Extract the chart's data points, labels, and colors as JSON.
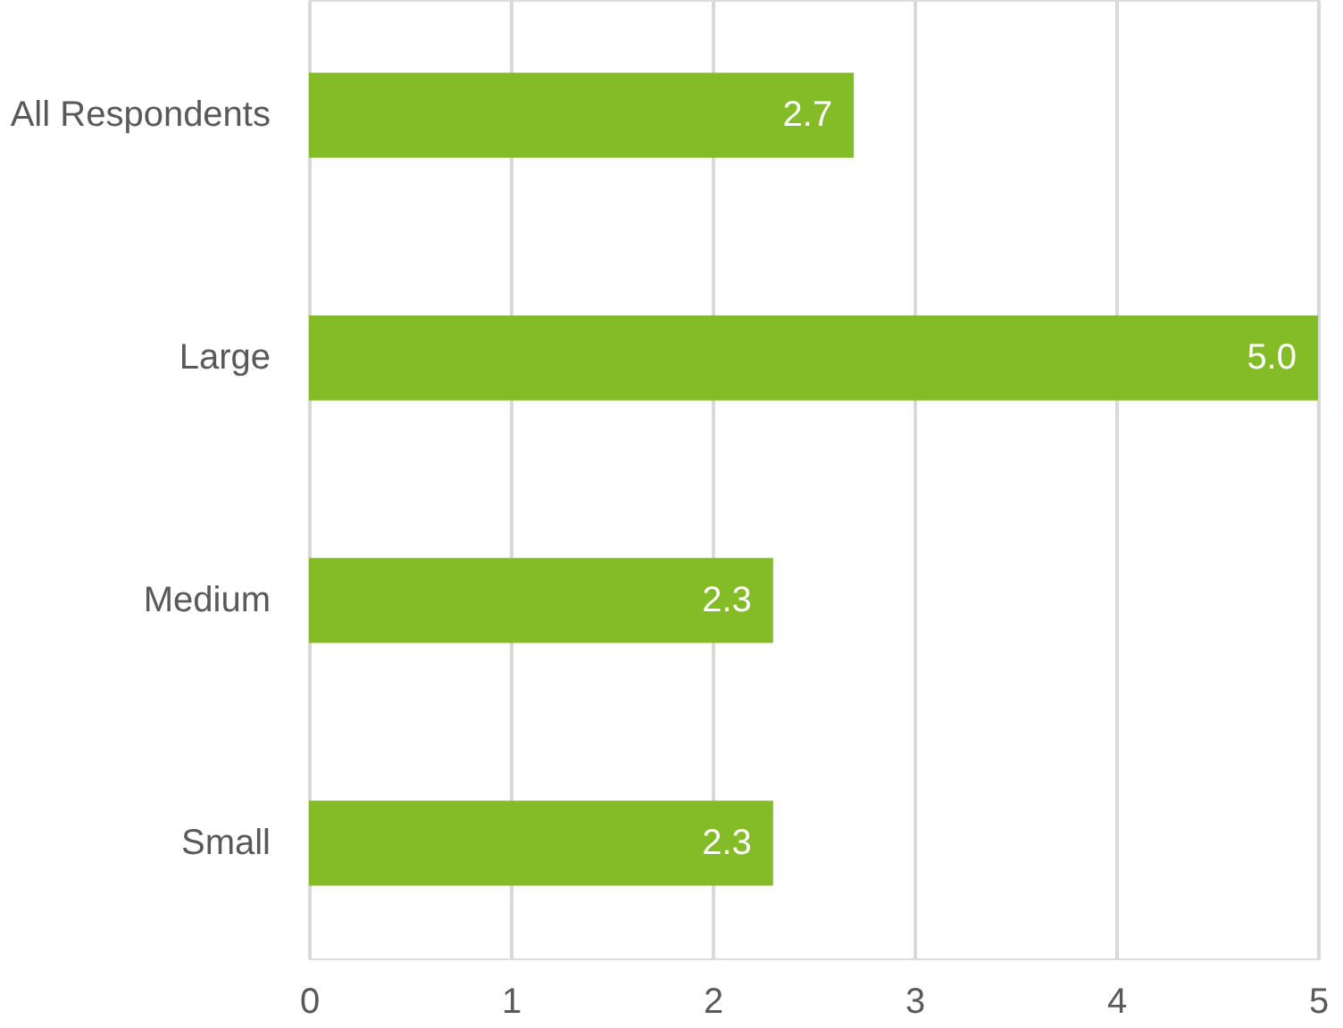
{
  "chart_data": {
    "type": "bar",
    "orientation": "horizontal",
    "categories": [
      "All Respondents",
      "Large",
      "Medium",
      "Small"
    ],
    "values": [
      2.7,
      5.0,
      2.3,
      2.3
    ],
    "value_labels": [
      "2.7",
      "5.0",
      "2.3",
      "2.3"
    ],
    "color": "#84bc27",
    "xlim": [
      0,
      5
    ],
    "xticks": [
      0,
      1,
      2,
      3,
      4,
      5
    ],
    "grid": "x"
  }
}
